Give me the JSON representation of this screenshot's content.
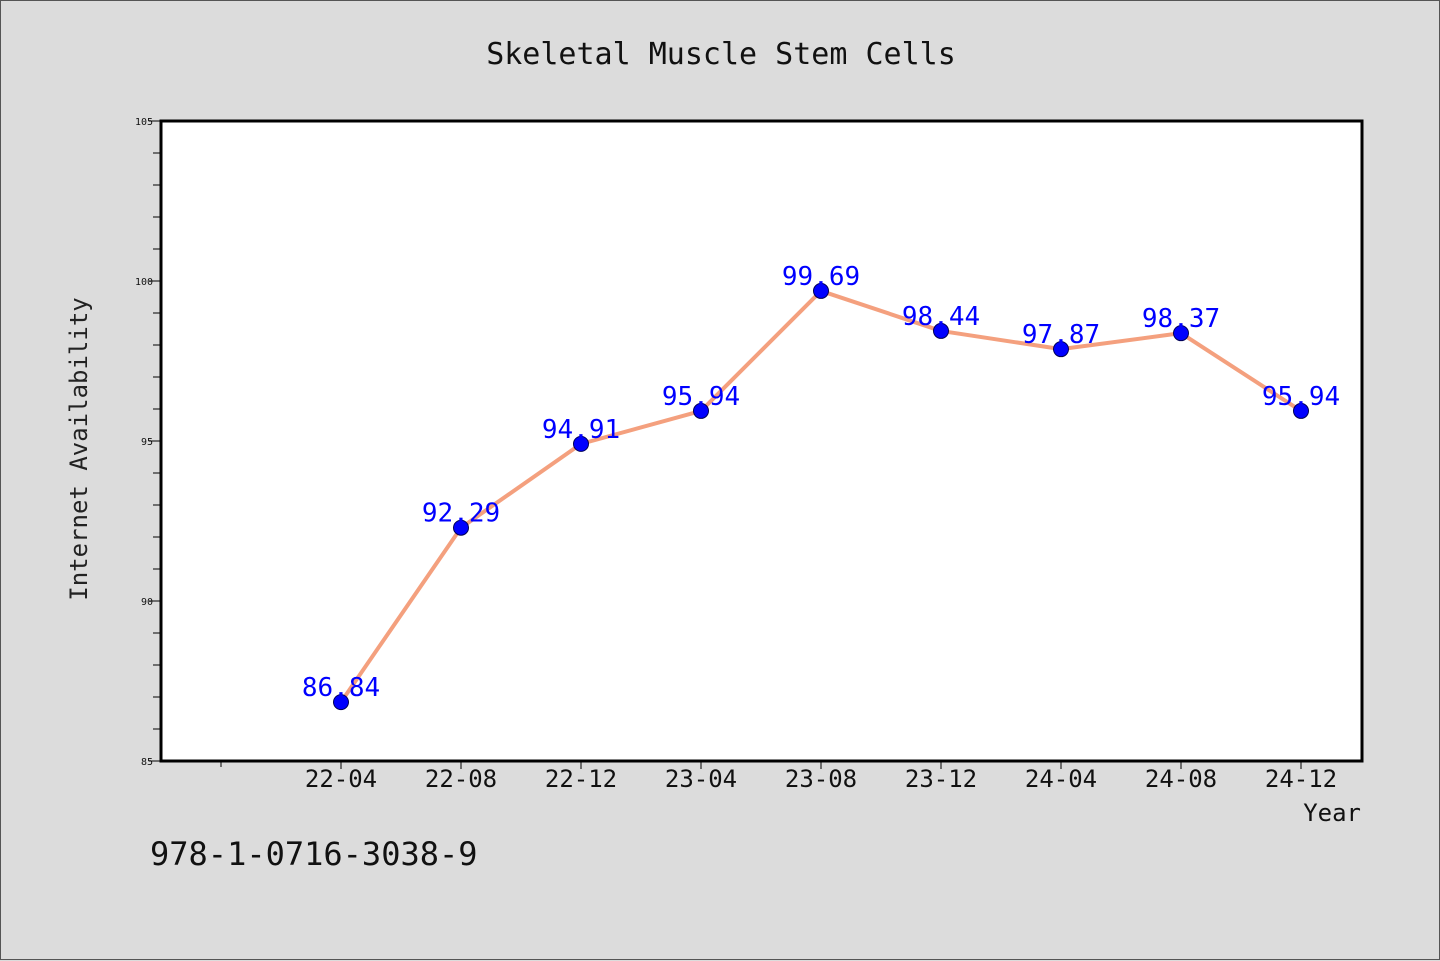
{
  "chart_data": {
    "type": "line",
    "title": "Skeletal Muscle Stem Cells",
    "xlabel": "Year",
    "ylabel": "Internet Availability",
    "categories": [
      "22-04",
      "22-08",
      "22-12",
      "23-04",
      "23-08",
      "23-12",
      "24-04",
      "24-08",
      "24-12"
    ],
    "series": [
      {
        "values": [
          86.84,
          92.29,
          94.91,
          95.94,
          99.69,
          98.44,
          97.87,
          98.37,
          95.94
        ],
        "labels": [
          "86.84",
          "92.29",
          "94.91",
          "95.94",
          "99.69",
          "98.44",
          "97.87",
          "98.37",
          "95.94"
        ]
      }
    ],
    "ylim": [
      85,
      105
    ],
    "yticks": [
      85,
      90,
      95,
      100,
      105
    ],
    "ytick_labels": [
      "85",
      "90",
      "95",
      "100",
      "105"
    ],
    "grid": false,
    "line_color": "#f4a07e",
    "marker_color": "#0000ff",
    "label_color": "#0000ff"
  },
  "footer": {
    "isbn": "978-1-0716-3038-9"
  }
}
